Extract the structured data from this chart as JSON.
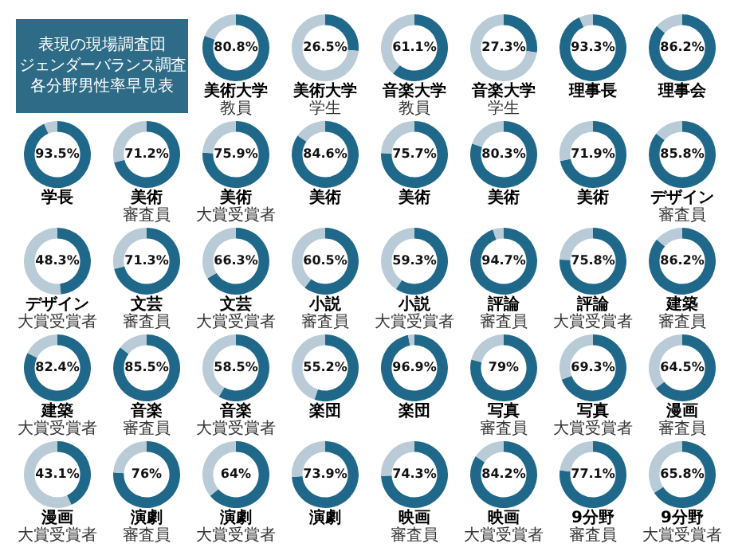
{
  "chart_data": [
    {
      "type": "other",
      "title": "表現の現場調査団",
      "subtitle": "ジェンダーバランス調査",
      "annotations": [
        "各分野男性率早見表"
      ]
    },
    {
      "type": "donut",
      "title": "美術大学",
      "subtitle": "教員",
      "categories": [
        null,
        null
      ],
      "values": [
        80.8,
        19.2
      ],
      "colors": [
        "#20688a",
        "#b8cbd6"
      ],
      "value_labels": [
        "80.8%",
        null
      ]
    },
    {
      "type": "donut",
      "title": "美術大学",
      "subtitle": "学生",
      "categories": [
        null,
        null
      ],
      "values": [
        26.5,
        73.5
      ],
      "colors": [
        "#20688a",
        "#b8cbd6"
      ],
      "value_labels": [
        "26.5%",
        null
      ]
    },
    {
      "type": "donut",
      "title": "音楽大学",
      "subtitle": "教員",
      "categories": [
        null,
        null
      ],
      "values": [
        61.1,
        38.9
      ],
      "colors": [
        "#20688a",
        "#b8cbd6"
      ],
      "value_labels": [
        "61.1%",
        null
      ]
    },
    {
      "type": "donut",
      "title": "音楽大学",
      "subtitle": "学生",
      "categories": [
        null,
        null
      ],
      "values": [
        27.3,
        72.7
      ],
      "colors": [
        "#20688a",
        "#b8cbd6"
      ],
      "value_labels": [
        "27.3%",
        null
      ]
    },
    {
      "type": "donut",
      "title": "理事長",
      "categories": [
        null,
        null
      ],
      "values": [
        93.3,
        6.7
      ],
      "colors": [
        "#20688a",
        "#b8cbd6"
      ],
      "value_labels": [
        "93.3%",
        null
      ]
    },
    {
      "type": "donut",
      "title": "理事会",
      "categories": [
        null,
        null
      ],
      "values": [
        86.2,
        13.8
      ],
      "colors": [
        "#20688a",
        "#b8cbd6"
      ],
      "value_labels": [
        "86.2%",
        null
      ]
    },
    {
      "type": "donut",
      "title": "学長",
      "categories": [
        null,
        null
      ],
      "values": [
        93.5,
        6.5
      ],
      "colors": [
        "#20688a",
        "#b8cbd6"
      ],
      "value_labels": [
        "93.5%",
        null
      ]
    },
    {
      "type": "donut",
      "title": "美術",
      "subtitle": "審査員",
      "categories": [
        null,
        null
      ],
      "values": [
        71.2,
        28.8
      ],
      "colors": [
        "#20688a",
        "#b8cbd6"
      ],
      "value_labels": [
        "71.2%",
        null
      ]
    },
    {
      "type": "donut",
      "title": "美術",
      "subtitle": "大賞受賞者",
      "categories": [
        null,
        null
      ],
      "values": [
        75.9,
        24.1
      ],
      "colors": [
        "#20688a",
        "#b8cbd6"
      ],
      "value_labels": [
        "75.9%",
        null
      ]
    },
    {
      "type": "donut",
      "title": "美術",
      "categories": [
        null,
        null
      ],
      "values": [
        84.6,
        15.4
      ],
      "colors": [
        "#20688a",
        "#b8cbd6"
      ],
      "value_labels": [
        "84.6%",
        null
      ]
    },
    {
      "type": "donut",
      "title": "美術",
      "categories": [
        null,
        null
      ],
      "values": [
        75.7,
        24.3
      ],
      "colors": [
        "#20688a",
        "#b8cbd6"
      ],
      "value_labels": [
        "75.7%",
        null
      ]
    },
    {
      "type": "donut",
      "title": "美術",
      "categories": [
        null,
        null
      ],
      "values": [
        80.3,
        19.7
      ],
      "colors": [
        "#20688a",
        "#b8cbd6"
      ],
      "value_labels": [
        "80.3%",
        null
      ]
    },
    {
      "type": "donut",
      "title": "美術",
      "categories": [
        null,
        null
      ],
      "values": [
        71.9,
        28.1
      ],
      "colors": [
        "#20688a",
        "#b8cbd6"
      ],
      "value_labels": [
        "71.9%",
        null
      ]
    },
    {
      "type": "donut",
      "title": "デザイン",
      "subtitle": "審査員",
      "categories": [
        null,
        null
      ],
      "values": [
        85.8,
        14.2
      ],
      "colors": [
        "#20688a",
        "#b8cbd6"
      ],
      "value_labels": [
        "85.8%",
        null
      ]
    },
    {
      "type": "donut",
      "title": "デザイン",
      "subtitle": "大賞受賞者",
      "categories": [
        null,
        null
      ],
      "values": [
        48.3,
        51.7
      ],
      "colors": [
        "#20688a",
        "#b8cbd6"
      ],
      "value_labels": [
        "48.3%",
        null
      ]
    },
    {
      "type": "donut",
      "title": "文芸",
      "subtitle": "審査員",
      "categories": [
        null,
        null
      ],
      "values": [
        71.3,
        28.7
      ],
      "colors": [
        "#20688a",
        "#b8cbd6"
      ],
      "value_labels": [
        "71.3%",
        null
      ]
    },
    {
      "type": "donut",
      "title": "文芸",
      "subtitle": "大賞受賞者",
      "categories": [
        null,
        null
      ],
      "values": [
        66.3,
        33.7
      ],
      "colors": [
        "#20688a",
        "#b8cbd6"
      ],
      "value_labels": [
        "66.3%",
        null
      ]
    },
    {
      "type": "donut",
      "title": "小説",
      "subtitle": "審査員",
      "categories": [
        null,
        null
      ],
      "values": [
        60.5,
        39.5
      ],
      "colors": [
        "#20688a",
        "#b8cbd6"
      ],
      "value_labels": [
        "60.5%",
        null
      ]
    },
    {
      "type": "donut",
      "title": "小説",
      "subtitle": "大賞受賞者",
      "categories": [
        null,
        null
      ],
      "values": [
        59.3,
        40.7
      ],
      "colors": [
        "#20688a",
        "#b8cbd6"
      ],
      "value_labels": [
        "59.3%",
        null
      ]
    },
    {
      "type": "donut",
      "title": "評論",
      "subtitle": "審査員",
      "categories": [
        null,
        null
      ],
      "values": [
        94.7,
        5.3
      ],
      "colors": [
        "#20688a",
        "#b8cbd6"
      ],
      "value_labels": [
        "94.7%",
        null
      ]
    },
    {
      "type": "donut",
      "title": "評論",
      "subtitle": "大賞受賞者",
      "categories": [
        null,
        null
      ],
      "values": [
        75.8,
        24.2
      ],
      "colors": [
        "#20688a",
        "#b8cbd6"
      ],
      "value_labels": [
        "75.8%",
        null
      ]
    },
    {
      "type": "donut",
      "title": "建築",
      "subtitle": "審査員",
      "categories": [
        null,
        null
      ],
      "values": [
        86.2,
        13.8
      ],
      "colors": [
        "#20688a",
        "#b8cbd6"
      ],
      "value_labels": [
        "86.2%",
        null
      ]
    },
    {
      "type": "donut",
      "title": "建築",
      "subtitle": "大賞受賞者",
      "categories": [
        null,
        null
      ],
      "values": [
        82.4,
        17.6
      ],
      "colors": [
        "#20688a",
        "#b8cbd6"
      ],
      "value_labels": [
        "82.4%",
        null
      ]
    },
    {
      "type": "donut",
      "title": "音楽",
      "subtitle": "審査員",
      "categories": [
        null,
        null
      ],
      "values": [
        85.5,
        14.5
      ],
      "colors": [
        "#20688a",
        "#b8cbd6"
      ],
      "value_labels": [
        "85.5%",
        null
      ]
    },
    {
      "type": "donut",
      "title": "音楽",
      "subtitle": "大賞受賞者",
      "categories": [
        null,
        null
      ],
      "values": [
        58.5,
        41.5
      ],
      "colors": [
        "#20688a",
        "#b8cbd6"
      ],
      "value_labels": [
        "58.5%",
        null
      ]
    },
    {
      "type": "donut",
      "title": "楽団",
      "categories": [
        null,
        null
      ],
      "values": [
        55.2,
        44.8
      ],
      "colors": [
        "#20688a",
        "#b8cbd6"
      ],
      "value_labels": [
        "55.2%",
        null
      ]
    },
    {
      "type": "donut",
      "title": "楽団",
      "categories": [
        null,
        null
      ],
      "values": [
        96.9,
        3.1
      ],
      "colors": [
        "#20688a",
        "#b8cbd6"
      ],
      "value_labels": [
        "96.9%",
        null
      ]
    },
    {
      "type": "donut",
      "title": "写真",
      "subtitle": "審査員",
      "categories": [
        null,
        null
      ],
      "values": [
        79,
        21
      ],
      "colors": [
        "#20688a",
        "#b8cbd6"
      ],
      "value_labels": [
        "79%",
        null
      ]
    },
    {
      "type": "donut",
      "title": "写真",
      "subtitle": "大賞受賞者",
      "categories": [
        null,
        null
      ],
      "values": [
        69.3,
        30.7
      ],
      "colors": [
        "#20688a",
        "#b8cbd6"
      ],
      "value_labels": [
        "69.3%",
        null
      ]
    },
    {
      "type": "donut",
      "title": "漫画",
      "subtitle": "審査員",
      "categories": [
        null,
        null
      ],
      "values": [
        64.5,
        35.5
      ],
      "colors": [
        "#20688a",
        "#b8cbd6"
      ],
      "value_labels": [
        "64.5%",
        null
      ]
    },
    {
      "type": "donut",
      "title": "漫画",
      "subtitle": "大賞受賞者",
      "categories": [
        null,
        null
      ],
      "values": [
        43.1,
        56.9
      ],
      "colors": [
        "#20688a",
        "#b8cbd6"
      ],
      "value_labels": [
        "43.1%",
        null
      ]
    },
    {
      "type": "donut",
      "title": "演劇",
      "subtitle": "審査員",
      "categories": [
        null,
        null
      ],
      "values": [
        76,
        24
      ],
      "colors": [
        "#20688a",
        "#b8cbd6"
      ],
      "value_labels": [
        "76%",
        null
      ]
    },
    {
      "type": "donut",
      "title": "演劇",
      "subtitle": "大賞受賞者",
      "categories": [
        null,
        null
      ],
      "values": [
        64,
        36
      ],
      "colors": [
        "#20688a",
        "#b8cbd6"
      ],
      "value_labels": [
        "64%",
        null
      ]
    },
    {
      "type": "donut",
      "title": "演劇",
      "categories": [
        null,
        null
      ],
      "values": [
        73.9,
        26.1
      ],
      "colors": [
        "#20688a",
        "#b8cbd6"
      ],
      "value_labels": [
        "73.9%",
        null
      ]
    },
    {
      "type": "donut",
      "title": "映画",
      "subtitle": "審査員",
      "categories": [
        null,
        null
      ],
      "values": [
        74.3,
        25.7
      ],
      "colors": [
        "#20688a",
        "#b8cbd6"
      ],
      "value_labels": [
        "74.3%",
        null
      ]
    },
    {
      "type": "donut",
      "title": "映画",
      "subtitle": "大賞受賞者",
      "categories": [
        null,
        null
      ],
      "values": [
        84.2,
        15.8
      ],
      "colors": [
        "#20688a",
        "#b8cbd6"
      ],
      "value_labels": [
        "84.2%",
        null
      ]
    },
    {
      "type": "donut",
      "title": "9分野",
      "subtitle": "審査員",
      "categories": [
        null,
        null
      ],
      "values": [
        77.1,
        22.9
      ],
      "colors": [
        "#20688a",
        "#b8cbd6"
      ],
      "value_labels": [
        "77.1%",
        null
      ]
    },
    {
      "type": "donut",
      "title": "9分野",
      "subtitle": "大賞受賞者",
      "categories": [
        null,
        null
      ],
      "values": [
        65.8,
        34.2
      ],
      "colors": [
        "#20688a",
        "#b8cbd6"
      ],
      "value_labels": [
        "65.8%",
        null
      ]
    }
  ]
}
